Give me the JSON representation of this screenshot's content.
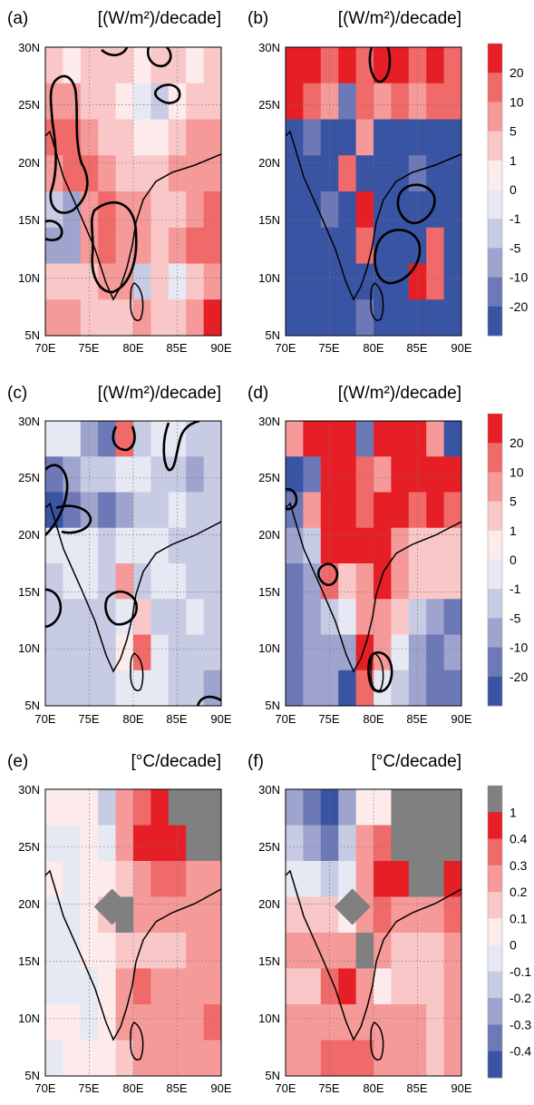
{
  "figure": {
    "legend_wm2": {
      "labels": [
        "20",
        "10",
        "5",
        "1",
        "0",
        "-1",
        "-5",
        "-10",
        "-20"
      ],
      "colors": [
        "#e61e26",
        "#f06a6a",
        "#f59999",
        "#f9c7c7",
        "#fdebeb",
        "#e6e8f3",
        "#c7cbe3",
        "#9ea4cd",
        "#6d78b6",
        "#3a54a4"
      ]
    },
    "legend_temp": {
      "labels": [
        "1",
        "0.4",
        "0.3",
        "0.2",
        "0.1",
        "0",
        "-0.1",
        "-0.2",
        "-0.3",
        "-0.4"
      ],
      "colors": [
        "#808080",
        "#e61e26",
        "#f06a6a",
        "#f59999",
        "#f9c7c7",
        "#fdebeb",
        "#e6e8f3",
        "#c7cbe3",
        "#9ea4cd",
        "#6d78b6",
        "#3a54a4"
      ]
    }
  },
  "chart_data": [
    {
      "type": "heatmap",
      "panel_label": "(a)",
      "title": "[(W/m²)/decade]",
      "x_ticks": [
        "70E",
        "75E",
        "80E",
        "85E",
        "90E"
      ],
      "y_ticks": [
        "30N",
        "25N",
        "20N",
        "15N",
        "10N",
        "5N"
      ],
      "xlim": [
        70,
        90
      ],
      "ylim": [
        5,
        30
      ],
      "grid": true,
      "grid_values": [
        [
          3,
          4,
          3,
          3,
          3,
          4,
          3,
          3,
          4,
          3
        ],
        [
          2,
          2,
          3,
          3,
          4,
          5,
          6,
          4,
          3,
          3
        ],
        [
          1,
          1,
          2,
          3,
          3,
          4,
          4,
          3,
          2,
          2
        ],
        [
          2,
          1,
          1,
          2,
          3,
          3,
          3,
          2,
          2,
          2
        ],
        [
          6,
          7,
          2,
          1,
          2,
          2,
          3,
          3,
          2,
          1
        ],
        [
          7,
          7,
          2,
          1,
          2,
          2,
          3,
          2,
          1,
          1
        ],
        [
          3,
          3,
          3,
          2,
          2,
          6,
          3,
          5,
          3,
          2
        ],
        [
          2,
          2,
          3,
          3,
          3,
          2,
          3,
          3,
          2,
          0
        ]
      ]
    },
    {
      "type": "heatmap",
      "panel_label": "(b)",
      "title": "[(W/m²)/decade]",
      "x_ticks": [
        "70E",
        "75E",
        "80E",
        "85E",
        "90E"
      ],
      "y_ticks": [
        "30N",
        "25N",
        "20N",
        "15N",
        "10N",
        "5N"
      ],
      "xlim": [
        70,
        90
      ],
      "ylim": [
        5,
        30
      ],
      "grid": true,
      "grid_values": [
        [
          0,
          0,
          1,
          0,
          1,
          0,
          0,
          1,
          0,
          1
        ],
        [
          0,
          1,
          2,
          8,
          1,
          2,
          1,
          2,
          1,
          1
        ],
        [
          9,
          8,
          9,
          9,
          2,
          9,
          9,
          9,
          9,
          9
        ],
        [
          9,
          9,
          9,
          1,
          9,
          9,
          9,
          8,
          9,
          9
        ],
        [
          9,
          9,
          8,
          9,
          0,
          9,
          9,
          9,
          9,
          9
        ],
        [
          9,
          9,
          9,
          9,
          1,
          9,
          9,
          9,
          1,
          9
        ],
        [
          9,
          9,
          9,
          9,
          9,
          9,
          9,
          0,
          1,
          9
        ],
        [
          9,
          9,
          9,
          9,
          8,
          9,
          9,
          9,
          9,
          9
        ]
      ]
    },
    {
      "type": "heatmap",
      "panel_label": "(c)",
      "title": "[(W/m²)/decade]",
      "x_ticks": [
        "70E",
        "75E",
        "80E",
        "85E",
        "90E"
      ],
      "y_ticks": [
        "30N",
        "25N",
        "20N",
        "15N",
        "10N",
        "5N"
      ],
      "xlim": [
        70,
        90
      ],
      "ylim": [
        5,
        30
      ],
      "grid": true,
      "grid_values": [
        [
          5,
          5,
          7,
          8,
          1,
          6,
          5,
          5,
          6,
          6
        ],
        [
          8,
          7,
          6,
          6,
          5,
          5,
          6,
          6,
          7,
          6
        ],
        [
          9,
          8,
          7,
          8,
          7,
          6,
          6,
          5,
          6,
          6
        ],
        [
          5,
          5,
          5,
          6,
          5,
          5,
          5,
          6,
          6,
          6
        ],
        [
          6,
          5,
          5,
          6,
          2,
          6,
          5,
          5,
          6,
          6
        ],
        [
          6,
          6,
          6,
          6,
          5,
          3,
          6,
          6,
          5,
          6
        ],
        [
          6,
          6,
          6,
          6,
          4,
          1,
          5,
          6,
          6,
          6
        ],
        [
          6,
          6,
          6,
          6,
          5,
          5,
          5,
          6,
          6,
          7
        ]
      ]
    },
    {
      "type": "heatmap",
      "panel_label": "(d)",
      "title": "[(W/m²)/decade]",
      "x_ticks": [
        "70E",
        "75E",
        "80E",
        "85E",
        "90E"
      ],
      "y_ticks": [
        "30N",
        "25N",
        "20N",
        "15N",
        "10N",
        "5N"
      ],
      "xlim": [
        70,
        90
      ],
      "ylim": [
        5,
        30
      ],
      "grid": true,
      "grid_values": [
        [
          2,
          0,
          0,
          0,
          8,
          0,
          0,
          0,
          2,
          9
        ],
        [
          9,
          8,
          0,
          0,
          1,
          2,
          0,
          0,
          0,
          0
        ],
        [
          8,
          2,
          0,
          0,
          1,
          0,
          0,
          1,
          0,
          1
        ],
        [
          7,
          6,
          0,
          0,
          0,
          0,
          2,
          3,
          3,
          3
        ],
        [
          8,
          7,
          1,
          3,
          2,
          0,
          2,
          3,
          3,
          3
        ],
        [
          8,
          7,
          6,
          5,
          2,
          2,
          3,
          6,
          7,
          8
        ],
        [
          8,
          7,
          7,
          7,
          0,
          2,
          5,
          7,
          8,
          7
        ],
        [
          8,
          7,
          7,
          9,
          1,
          5,
          6,
          7,
          8,
          8
        ]
      ]
    },
    {
      "type": "heatmap",
      "panel_label": "(e)",
      "title": "[°C/decade]",
      "x_ticks": [
        "70E",
        "75E",
        "80E",
        "85E",
        "90E"
      ],
      "y_ticks": [
        "30N",
        "25N",
        "20N",
        "15N",
        "10N",
        "5N"
      ],
      "xlim": [
        70,
        90
      ],
      "ylim": [
        5,
        30
      ],
      "grid": true,
      "grid_values": [
        [
          5,
          5,
          5,
          7,
          3,
          2,
          1,
          0,
          0,
          0
        ],
        [
          6,
          6,
          5,
          6,
          3,
          1,
          1,
          1,
          0,
          0
        ],
        [
          5,
          6,
          5,
          5,
          4,
          3,
          2,
          2,
          3,
          3
        ],
        [
          6,
          6,
          5,
          4,
          0,
          3,
          3,
          3,
          3,
          3
        ],
        [
          6,
          6,
          5,
          5,
          4,
          4,
          4,
          4,
          3,
          3
        ],
        [
          6,
          6,
          6,
          5,
          3,
          2,
          3,
          3,
          3,
          3
        ],
        [
          5,
          5,
          6,
          5,
          3,
          3,
          3,
          3,
          3,
          2
        ],
        [
          6,
          5,
          5,
          5,
          4,
          3,
          3,
          3,
          3,
          3
        ]
      ]
    },
    {
      "type": "heatmap",
      "panel_label": "(f)",
      "title": "[°C/decade]",
      "x_ticks": [
        "70E",
        "75E",
        "80E",
        "85E",
        "90E"
      ],
      "y_ticks": [
        "30N",
        "25N",
        "20N",
        "15N",
        "10N",
        "5N"
      ],
      "xlim": [
        70,
        90
      ],
      "ylim": [
        5,
        30
      ],
      "grid": true,
      "grid_values": [
        [
          8,
          9,
          10,
          8,
          5,
          5,
          0,
          0,
          0,
          0
        ],
        [
          7,
          8,
          9,
          7,
          3,
          2,
          0,
          0,
          0,
          0
        ],
        [
          6,
          6,
          7,
          6,
          3,
          1,
          1,
          0,
          0,
          1
        ],
        [
          4,
          4,
          4,
          5,
          3,
          2,
          3,
          3,
          3,
          2
        ],
        [
          3,
          3,
          3,
          3,
          0,
          3,
          4,
          4,
          4,
          3
        ],
        [
          4,
          4,
          2,
          1,
          3,
          5,
          4,
          4,
          4,
          3
        ],
        [
          3,
          3,
          3,
          3,
          3,
          3,
          3,
          3,
          4,
          3
        ],
        [
          3,
          3,
          2,
          2,
          2,
          3,
          3,
          3,
          4,
          3
        ]
      ]
    }
  ]
}
